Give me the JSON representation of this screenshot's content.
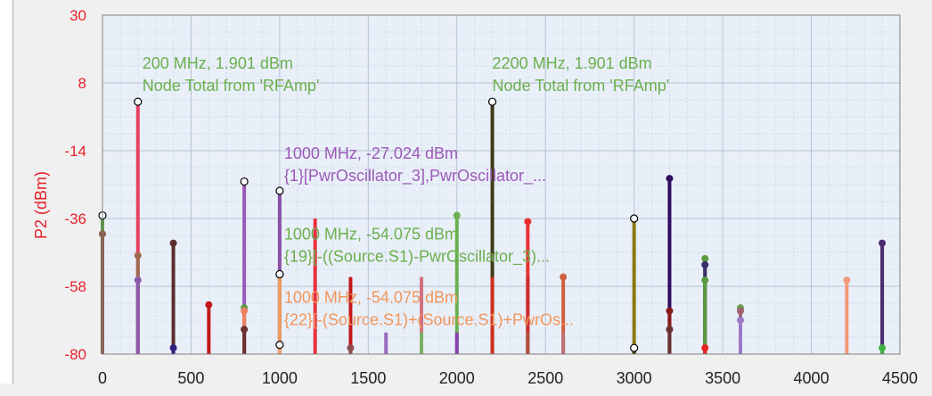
{
  "chart_data": {
    "type": "stem",
    "ylabel": "P2 (dBm)",
    "xlim": [
      0,
      4500
    ],
    "ylim": [
      -80,
      30
    ],
    "x_ticks": [
      "0",
      "500",
      "1000",
      "1500",
      "2000",
      "2500",
      "3000",
      "3500",
      "4000",
      "4500"
    ],
    "y_ticks": [
      "30",
      "8",
      "-14",
      "-36",
      "-58",
      "-80"
    ],
    "grid": true,
    "stems": [
      {
        "x": 0,
        "y": -35,
        "color": "#5b9a3e",
        "marker": "open"
      },
      {
        "x": 0,
        "y": -41,
        "color": "#8c5a4a",
        "marker": "filled"
      },
      {
        "x": 200,
        "y": 1.9,
        "color": "#e8405f",
        "marker": "open"
      },
      {
        "x": 200,
        "y": -48,
        "color": "#a06a50",
        "marker": "filled"
      },
      {
        "x": 200,
        "y": -56,
        "color": "#8a5aa8",
        "marker": "filled"
      },
      {
        "x": 400,
        "y": -44,
        "color": "#5c2e2e",
        "marker": "filled"
      },
      {
        "x": 400,
        "y": -78,
        "color": "#2e2080",
        "marker": "filled"
      },
      {
        "x": 600,
        "y": -64,
        "color": "#c41818",
        "marker": "filled"
      },
      {
        "x": 800,
        "y": -24,
        "color": "#9a5ab8",
        "marker": "open"
      },
      {
        "x": 800,
        "y": -65,
        "color": "#5b9a3e",
        "marker": "filled"
      },
      {
        "x": 800,
        "y": -66,
        "color": "#f08060",
        "marker": "filled"
      },
      {
        "x": 800,
        "y": -72,
        "color": "#6a3030",
        "marker": "filled"
      },
      {
        "x": 1000,
        "y": -27.024,
        "color": "#8a50a8",
        "marker": "open"
      },
      {
        "x": 1000,
        "y": -54.075,
        "color": "#5b9a3e",
        "marker": "open"
      },
      {
        "x": 1000,
        "y": -54.075,
        "color": "#f09a60",
        "marker": "open"
      },
      {
        "x": 1000,
        "y": -77,
        "color": "#f4a070",
        "marker": "open"
      },
      {
        "x": 1200,
        "y": -36,
        "color": "#e83040",
        "marker": "none"
      },
      {
        "x": 1400,
        "y": -55,
        "color": "#c41818",
        "marker": "none"
      },
      {
        "x": 1400,
        "y": -78,
        "color": "#8a5050",
        "marker": "filled"
      },
      {
        "x": 1600,
        "y": -73,
        "color": "#9a6ac0",
        "marker": "none"
      },
      {
        "x": 1800,
        "y": -55,
        "color": "#d07080",
        "marker": "none"
      },
      {
        "x": 1800,
        "y": -73,
        "color": "#7ab060",
        "marker": "none"
      },
      {
        "x": 2000,
        "y": -35,
        "color": "#6ab050",
        "marker": "filled"
      },
      {
        "x": 2000,
        "y": -73,
        "color": "#8a40b0",
        "marker": "none"
      },
      {
        "x": 2200,
        "y": 1.901,
        "color": "#3c3c14",
        "marker": "open"
      },
      {
        "x": 2200,
        "y": -55,
        "color": "#d03020",
        "marker": "none"
      },
      {
        "x": 2400,
        "y": -37,
        "color": "#e83030",
        "marker": "filled"
      },
      {
        "x": 2400,
        "y": -55,
        "color": "#c83030",
        "marker": "none"
      },
      {
        "x": 2400,
        "y": -73,
        "color": "#b05040",
        "marker": "none"
      },
      {
        "x": 2600,
        "y": -55,
        "color": "#d06040",
        "marker": "filled"
      },
      {
        "x": 2600,
        "y": -73,
        "color": "#c07070",
        "marker": "none"
      },
      {
        "x": 3000,
        "y": -36,
        "color": "#8a7a10",
        "marker": "open"
      },
      {
        "x": 3000,
        "y": -78,
        "color": "#3c3c14",
        "marker": "open"
      },
      {
        "x": 3200,
        "y": -23,
        "color": "#2e0e60",
        "marker": "filled"
      },
      {
        "x": 3200,
        "y": -66,
        "color": "#8a1818",
        "marker": "filled"
      },
      {
        "x": 3200,
        "y": -72,
        "color": "#6a3030",
        "marker": "filled"
      },
      {
        "x": 3400,
        "y": -49,
        "color": "#5b9a3e",
        "marker": "filled"
      },
      {
        "x": 3400,
        "y": -51,
        "color": "#3c2e6a",
        "marker": "filled"
      },
      {
        "x": 3400,
        "y": -56,
        "color": "#5b9a3e",
        "marker": "filled"
      },
      {
        "x": 3400,
        "y": -78,
        "color": "#e82020",
        "marker": "filled"
      },
      {
        "x": 3600,
        "y": -65,
        "color": "#6a9a4a",
        "marker": "filled"
      },
      {
        "x": 3600,
        "y": -66,
        "color": "#a06070",
        "marker": "filled"
      },
      {
        "x": 3600,
        "y": -69,
        "color": "#9a7ac8",
        "marker": "filled"
      },
      {
        "x": 4200,
        "y": -56,
        "color": "#f09a7a",
        "marker": "filled"
      },
      {
        "x": 4400,
        "y": -44,
        "color": "#4a2a70",
        "marker": "filled"
      },
      {
        "x": 4400,
        "y": -78,
        "color": "#40b040",
        "marker": "filled"
      }
    ],
    "annotations": [
      {
        "x": 200,
        "y": 1.901,
        "color": "#6ab04c",
        "line1": "200 MHz, 1.901 dBm",
        "line2": "Node Total from 'RFAmp'"
      },
      {
        "x": 2200,
        "y": 1.901,
        "color": "#6ab04c",
        "line1": "2200 MHz, 1.901 dBm",
        "line2": "Node Total from 'RFAmp'"
      },
      {
        "x": 1000,
        "y": -27.024,
        "color": "#9b59b6",
        "line1": "1000 MHz, -27.024 dBm",
        "line2": "{1}[PwrOscillator_3],PwrOscillator_..."
      },
      {
        "x": 1000,
        "y": -54.075,
        "color": "#6ab04c",
        "line1": "1000 MHz, -54.075 dBm",
        "line2": "{19}[-((Source.S1)-PwrOscillator_3)..."
      },
      {
        "x": 1000,
        "y": -54.075,
        "color": "#f0965a",
        "line1": "1000 MHz, -54.075 dBm",
        "line2": "{22}[-(Source.S1)+(Source.S1)+PwrOs..."
      }
    ]
  }
}
